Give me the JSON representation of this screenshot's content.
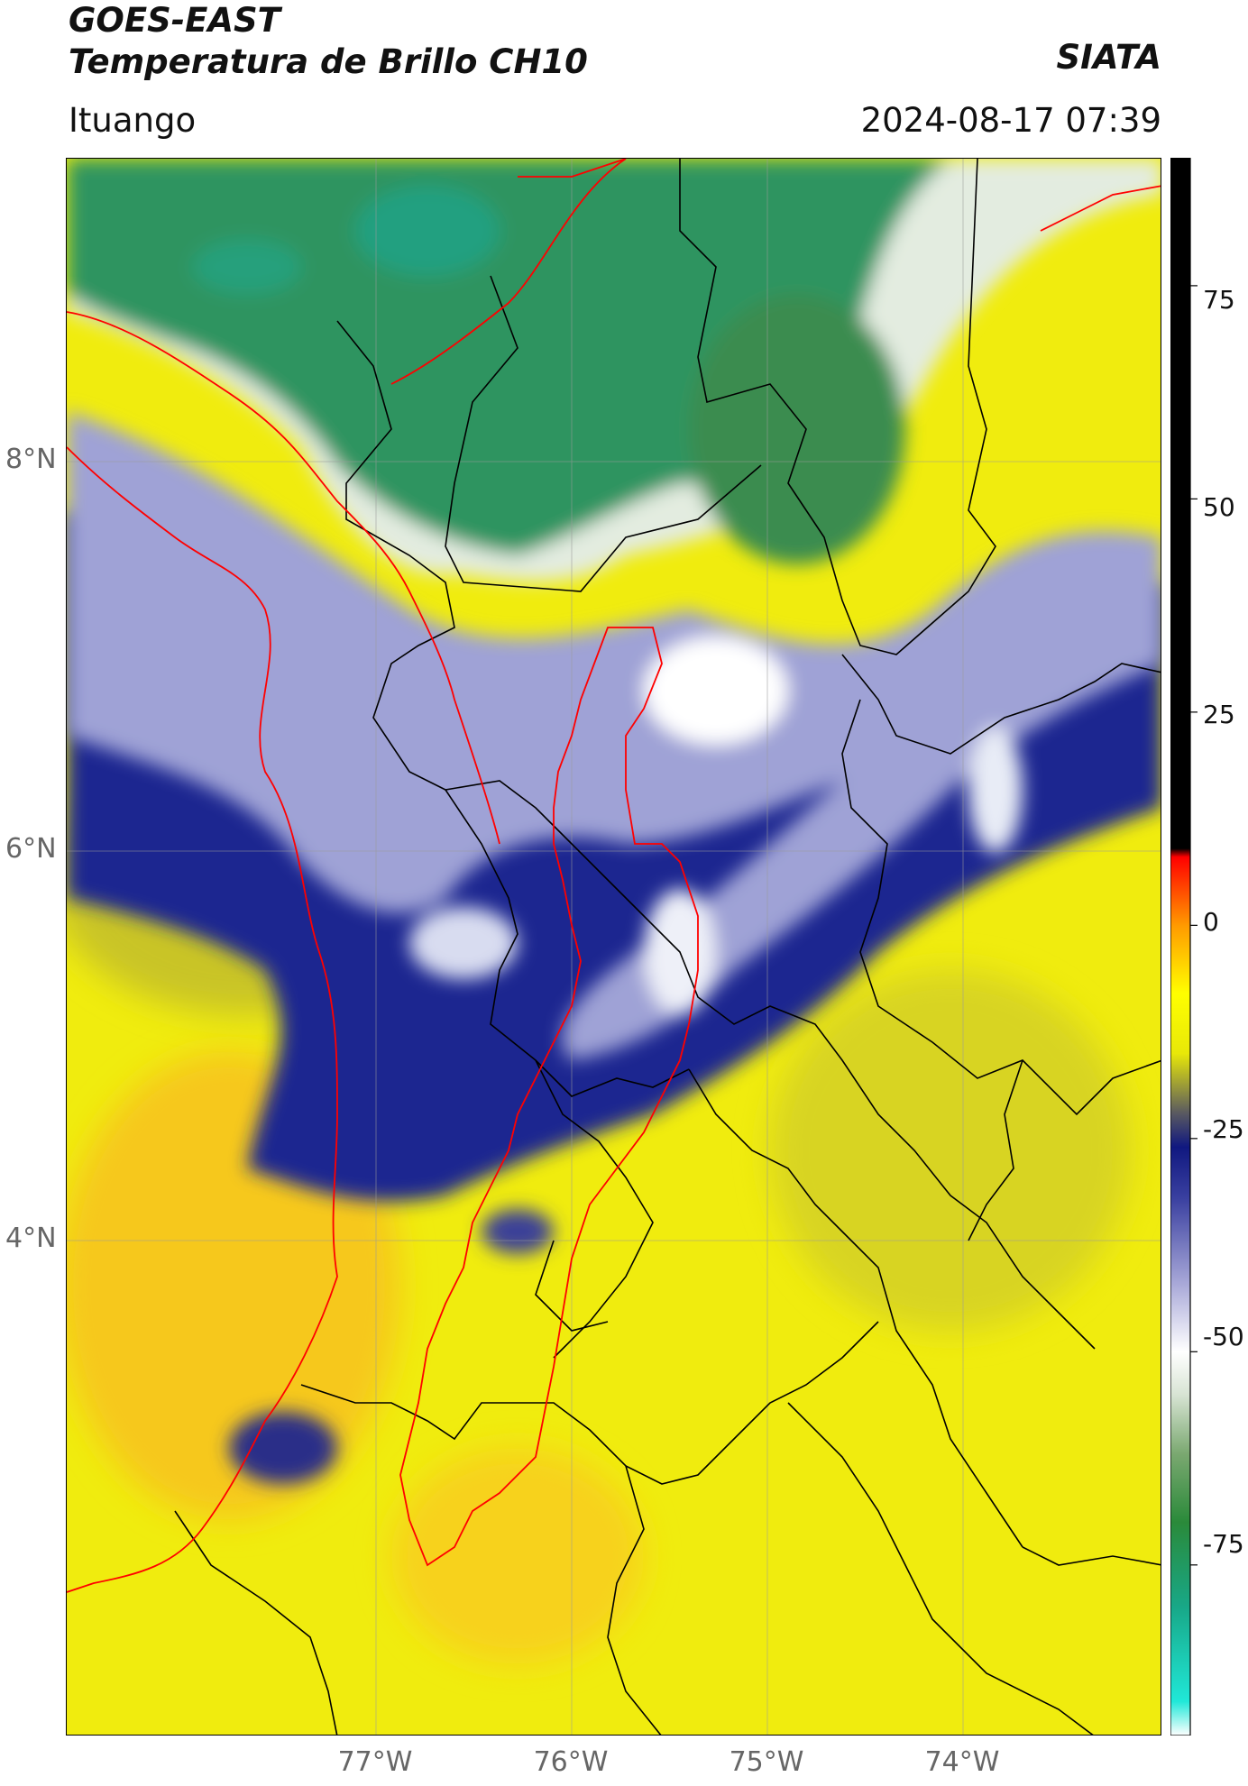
{
  "header": {
    "satellite": "GOES-EAST",
    "product": "Temperatura de Brillo CH10",
    "institution": "SIATA",
    "region": "Ituango",
    "datetime": "2024-08-17 07:39"
  },
  "axes": {
    "latitude_labels": [
      "8°N",
      "6°N",
      "4°N"
    ],
    "longitude_labels": [
      "77°W",
      "76°W",
      "75°W",
      "74°W"
    ],
    "lat_values": [
      8,
      6,
      4
    ],
    "lon_values": [
      -77,
      -76,
      -75,
      -74
    ],
    "lon_range": [
      -78.55,
      -72.95
    ],
    "lat_range": [
      1.45,
      9.55
    ]
  },
  "colorbar": {
    "tick_labels": [
      "75",
      "50",
      "25",
      "0",
      "-25",
      "-50",
      "-75"
    ],
    "tick_values": [
      75,
      50,
      25,
      0,
      -25,
      -50,
      -75
    ],
    "range": [
      -95,
      90
    ],
    "stops": [
      {
        "value": -95,
        "color": "#ffffff"
      },
      {
        "value": -91,
        "color": "#20e8d8"
      },
      {
        "value": -80,
        "color": "#18a888"
      },
      {
        "value": -70,
        "color": "#2a8a3a"
      },
      {
        "value": -62,
        "color": "#7aa870"
      },
      {
        "value": -55,
        "color": "#d8e4d4"
      },
      {
        "value": -50,
        "color": "#ffffff"
      },
      {
        "value": -42,
        "color": "#a8a8d8"
      },
      {
        "value": -32,
        "color": "#3a40a0"
      },
      {
        "value": -26,
        "color": "#101880"
      },
      {
        "value": -22,
        "color": "#5a5a60"
      },
      {
        "value": -15,
        "color": "#e8e808"
      },
      {
        "value": -8,
        "color": "#ffff00"
      },
      {
        "value": 0,
        "color": "#ff9a00"
      },
      {
        "value": 8,
        "color": "#ff0000"
      },
      {
        "value": 9,
        "color": "#000000"
      },
      {
        "value": 90,
        "color": "#000000"
      }
    ]
  },
  "colors": {
    "warm_yellow": "#f2ee0a",
    "orange": "#f7c21a",
    "cloud_blue": "#1a1f8a",
    "cloud_light": "#b8badf",
    "green": "#2e8f5a",
    "border_red": "#ff0000",
    "border_black": "#000000"
  }
}
